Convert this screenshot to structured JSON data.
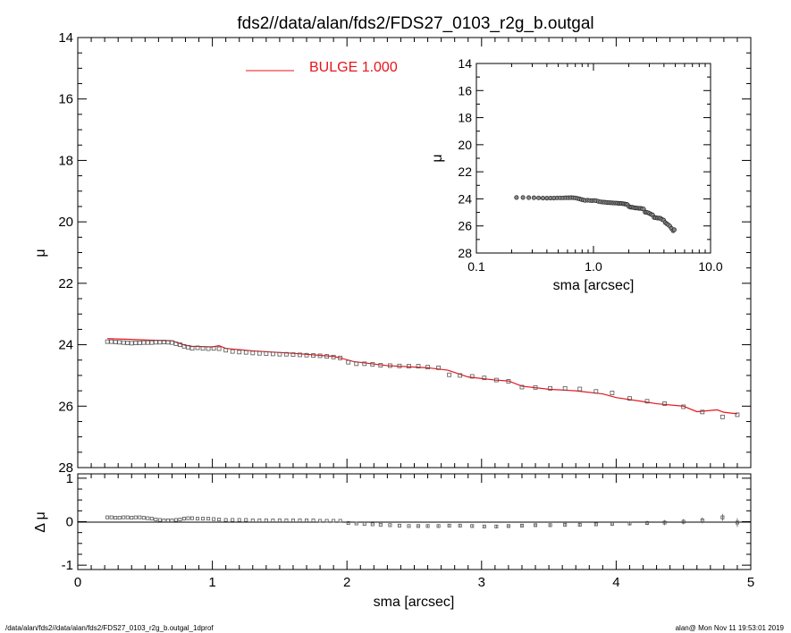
{
  "title": "fds2//data/alan/fds2/FDS27_0103_r2g_b.outgal",
  "footer": {
    "left": "/data/alan/fds2//data/alan/fds2/FDS27_0103_r2g_b.outgal_1dprof",
    "right": "alan@  Mon Nov 11 19:53:01 2019"
  },
  "legend": {
    "label": "BULGE  1.000",
    "color": "#e8141b"
  },
  "colors": {
    "model": "#e8141b",
    "data": "#555555"
  },
  "chart_data": [
    {
      "id": "main",
      "type": "scatter",
      "xlabel": "sma [arcsec]",
      "ylabel": "μ",
      "xlim": [
        0,
        5
      ],
      "ylim": [
        28,
        14
      ],
      "x_ticks": [
        0,
        1,
        2,
        3,
        4,
        5
      ],
      "x_tick_labels": [
        "0",
        "1",
        "2",
        "3",
        "4",
        "5"
      ],
      "y_ticks": [
        14,
        16,
        18,
        20,
        22,
        24,
        26,
        28
      ],
      "y_tick_labels": [
        "14",
        "16",
        "18",
        "20",
        "22",
        "24",
        "26",
        "28"
      ],
      "series": [
        {
          "kind": "data",
          "x": [
            0.22,
            0.25,
            0.28,
            0.31,
            0.34,
            0.37,
            0.4,
            0.43,
            0.46,
            0.49,
            0.52,
            0.55,
            0.58,
            0.61,
            0.64,
            0.67,
            0.7,
            0.73,
            0.76,
            0.79,
            0.82,
            0.85,
            0.89,
            0.93,
            0.97,
            1.01,
            1.05,
            1.1,
            1.15,
            1.2,
            1.25,
            1.3,
            1.35,
            1.4,
            1.45,
            1.5,
            1.55,
            1.6,
            1.65,
            1.7,
            1.75,
            1.8,
            1.85,
            1.9,
            1.95,
            2.01,
            2.07,
            2.13,
            2.19,
            2.25,
            2.32,
            2.39,
            2.46,
            2.53,
            2.6,
            2.68,
            2.76,
            2.84,
            2.93,
            3.02,
            3.11,
            3.2,
            3.3,
            3.4,
            3.51,
            3.62,
            3.73,
            3.85,
            3.97,
            4.1,
            4.23,
            4.36,
            4.5,
            4.64,
            4.79,
            4.9
          ],
          "y": [
            23.9,
            23.9,
            23.91,
            23.92,
            23.93,
            23.94,
            23.95,
            23.94,
            23.94,
            23.93,
            23.93,
            23.93,
            23.92,
            23.92,
            23.91,
            23.92,
            23.93,
            23.97,
            24.0,
            24.05,
            24.08,
            24.12,
            24.1,
            24.12,
            24.13,
            24.12,
            24.13,
            24.18,
            24.22,
            24.24,
            24.25,
            24.27,
            24.28,
            24.29,
            24.3,
            24.31,
            24.31,
            24.32,
            24.33,
            24.34,
            24.35,
            24.36,
            24.38,
            24.4,
            24.43,
            24.57,
            24.62,
            24.62,
            24.64,
            24.67,
            24.68,
            24.69,
            24.7,
            24.7,
            24.73,
            24.75,
            24.98,
            25.0,
            25.03,
            25.08,
            25.15,
            25.19,
            25.38,
            25.39,
            25.42,
            25.42,
            25.44,
            25.52,
            25.57,
            25.75,
            25.84,
            25.92,
            26.02,
            26.19,
            26.35,
            26.28
          ]
        },
        {
          "kind": "model",
          "name": "BULGE  1.000",
          "x": [
            0.22,
            0.35,
            0.55,
            0.7,
            0.75,
            0.8,
            0.85,
            1.0,
            1.05,
            1.1,
            1.3,
            1.6,
            1.9,
            1.95,
            2.05,
            2.3,
            2.6,
            2.75,
            2.9,
            3.1,
            3.2,
            3.3,
            3.5,
            3.7,
            3.9,
            4.0,
            4.2,
            4.3,
            4.5,
            4.6,
            4.75,
            4.8,
            4.9
          ],
          "y": [
            23.8,
            23.82,
            23.85,
            23.87,
            23.95,
            24.02,
            24.05,
            24.07,
            24.03,
            24.12,
            24.2,
            24.28,
            24.38,
            24.43,
            24.55,
            24.68,
            24.75,
            24.83,
            25.05,
            25.15,
            25.18,
            25.35,
            25.45,
            25.5,
            25.6,
            25.72,
            25.85,
            25.92,
            26.0,
            26.18,
            26.12,
            26.2,
            26.25
          ]
        }
      ]
    },
    {
      "id": "residual",
      "type": "scatter",
      "xlabel": "sma [arcsec]",
      "ylabel": "Δ μ",
      "xlim": [
        0,
        5
      ],
      "ylim": [
        -1.1,
        1.1
      ],
      "y_ticks": [
        -1,
        0,
        1
      ],
      "y_tick_labels": [
        "-1",
        "0",
        "1"
      ],
      "reference_line": 0,
      "series": [
        {
          "kind": "residual",
          "x": [
            0.22,
            0.25,
            0.28,
            0.31,
            0.34,
            0.37,
            0.4,
            0.43,
            0.46,
            0.49,
            0.52,
            0.55,
            0.58,
            0.61,
            0.64,
            0.67,
            0.7,
            0.73,
            0.76,
            0.79,
            0.82,
            0.85,
            0.89,
            0.93,
            0.97,
            1.01,
            1.05,
            1.1,
            1.15,
            1.2,
            1.25,
            1.3,
            1.35,
            1.4,
            1.45,
            1.5,
            1.55,
            1.6,
            1.65,
            1.7,
            1.75,
            1.8,
            1.85,
            1.9,
            1.95,
            2.01,
            2.07,
            2.13,
            2.19,
            2.25,
            2.32,
            2.39,
            2.46,
            2.53,
            2.6,
            2.68,
            2.76,
            2.84,
            2.93,
            3.02,
            3.11,
            3.2,
            3.3,
            3.4,
            3.51,
            3.62,
            3.73,
            3.85,
            3.97,
            4.1,
            4.23,
            4.36,
            4.5,
            4.64,
            4.79,
            4.9
          ],
          "y": [
            0.1,
            0.1,
            0.09,
            0.09,
            0.1,
            0.1,
            0.09,
            0.1,
            0.1,
            0.09,
            0.08,
            0.07,
            0.05,
            0.04,
            0.03,
            0.03,
            0.03,
            0.04,
            0.05,
            0.07,
            0.08,
            0.08,
            0.07,
            0.07,
            0.07,
            0.06,
            0.05,
            0.04,
            0.04,
            0.04,
            0.04,
            0.03,
            0.03,
            0.03,
            0.03,
            0.03,
            0.03,
            0.03,
            0.03,
            0.03,
            0.03,
            0.02,
            0.02,
            0.02,
            0.02,
            -0.03,
            -0.04,
            -0.05,
            -0.06,
            -0.07,
            -0.08,
            -0.09,
            -0.1,
            -0.1,
            -0.1,
            -0.1,
            -0.09,
            -0.09,
            -0.1,
            -0.11,
            -0.11,
            -0.1,
            -0.09,
            -0.08,
            -0.08,
            -0.07,
            -0.07,
            -0.06,
            -0.05,
            -0.04,
            -0.03,
            -0.02,
            0.0,
            0.03,
            0.1,
            -0.02
          ],
          "err": [
            0.005,
            0.005,
            0.005,
            0.005,
            0.005,
            0.005,
            0.005,
            0.005,
            0.005,
            0.005,
            0.005,
            0.005,
            0.005,
            0.005,
            0.005,
            0.005,
            0.005,
            0.005,
            0.005,
            0.005,
            0.005,
            0.005,
            0.005,
            0.005,
            0.005,
            0.005,
            0.005,
            0.005,
            0.005,
            0.005,
            0.005,
            0.005,
            0.005,
            0.005,
            0.005,
            0.005,
            0.005,
            0.005,
            0.005,
            0.005,
            0.005,
            0.005,
            0.005,
            0.005,
            0.005,
            0.01,
            0.01,
            0.01,
            0.01,
            0.01,
            0.01,
            0.01,
            0.01,
            0.02,
            0.02,
            0.02,
            0.02,
            0.02,
            0.02,
            0.02,
            0.03,
            0.03,
            0.03,
            0.03,
            0.03,
            0.04,
            0.04,
            0.04,
            0.04,
            0.05,
            0.05,
            0.06,
            0.06,
            0.07,
            0.08,
            0.1
          ]
        }
      ]
    },
    {
      "id": "inset",
      "type": "scatter",
      "xscale": "log",
      "xlabel": "sma [arcsec]",
      "ylabel": "μ",
      "xlim": [
        0.1,
        10
      ],
      "ylim": [
        28,
        14
      ],
      "x_ticks": [
        0.1,
        1,
        10
      ],
      "x_tick_labels": [
        "0.1",
        "1.0",
        "10.0"
      ],
      "y_ticks": [
        14,
        16,
        18,
        20,
        22,
        24,
        26,
        28
      ],
      "y_tick_labels": [
        "14",
        "16",
        "18",
        "20",
        "22",
        "24",
        "26",
        "28"
      ],
      "series": [
        {
          "kind": "data",
          "x": [
            0.22,
            0.25,
            0.28,
            0.31,
            0.34,
            0.37,
            0.4,
            0.43,
            0.46,
            0.49,
            0.52,
            0.55,
            0.58,
            0.61,
            0.64,
            0.67,
            0.7,
            0.73,
            0.76,
            0.79,
            0.82,
            0.85,
            0.89,
            0.93,
            0.97,
            1.01,
            1.05,
            1.1,
            1.15,
            1.2,
            1.25,
            1.3,
            1.35,
            1.4,
            1.45,
            1.5,
            1.55,
            1.6,
            1.65,
            1.7,
            1.75,
            1.8,
            1.85,
            1.9,
            1.95,
            2.01,
            2.07,
            2.13,
            2.19,
            2.25,
            2.32,
            2.39,
            2.46,
            2.53,
            2.6,
            2.68,
            2.76,
            2.84,
            2.93,
            3.02,
            3.11,
            3.2,
            3.3,
            3.4,
            3.51,
            3.62,
            3.73,
            3.85,
            3.97,
            4.1,
            4.23,
            4.36,
            4.5,
            4.64,
            4.79,
            4.9
          ],
          "y": [
            23.9,
            23.9,
            23.91,
            23.92,
            23.93,
            23.94,
            23.95,
            23.94,
            23.94,
            23.93,
            23.93,
            23.93,
            23.92,
            23.92,
            23.91,
            23.92,
            23.93,
            23.97,
            24.0,
            24.05,
            24.08,
            24.12,
            24.1,
            24.12,
            24.13,
            24.12,
            24.13,
            24.18,
            24.22,
            24.24,
            24.25,
            24.27,
            24.28,
            24.29,
            24.3,
            24.31,
            24.31,
            24.32,
            24.33,
            24.34,
            24.35,
            24.36,
            24.38,
            24.4,
            24.43,
            24.57,
            24.62,
            24.62,
            24.64,
            24.67,
            24.68,
            24.69,
            24.7,
            24.7,
            24.73,
            24.75,
            24.98,
            25.0,
            25.03,
            25.08,
            25.15,
            25.19,
            25.38,
            25.39,
            25.42,
            25.42,
            25.44,
            25.52,
            25.57,
            25.75,
            25.84,
            25.92,
            26.02,
            26.19,
            26.35,
            26.28
          ]
        }
      ]
    }
  ]
}
